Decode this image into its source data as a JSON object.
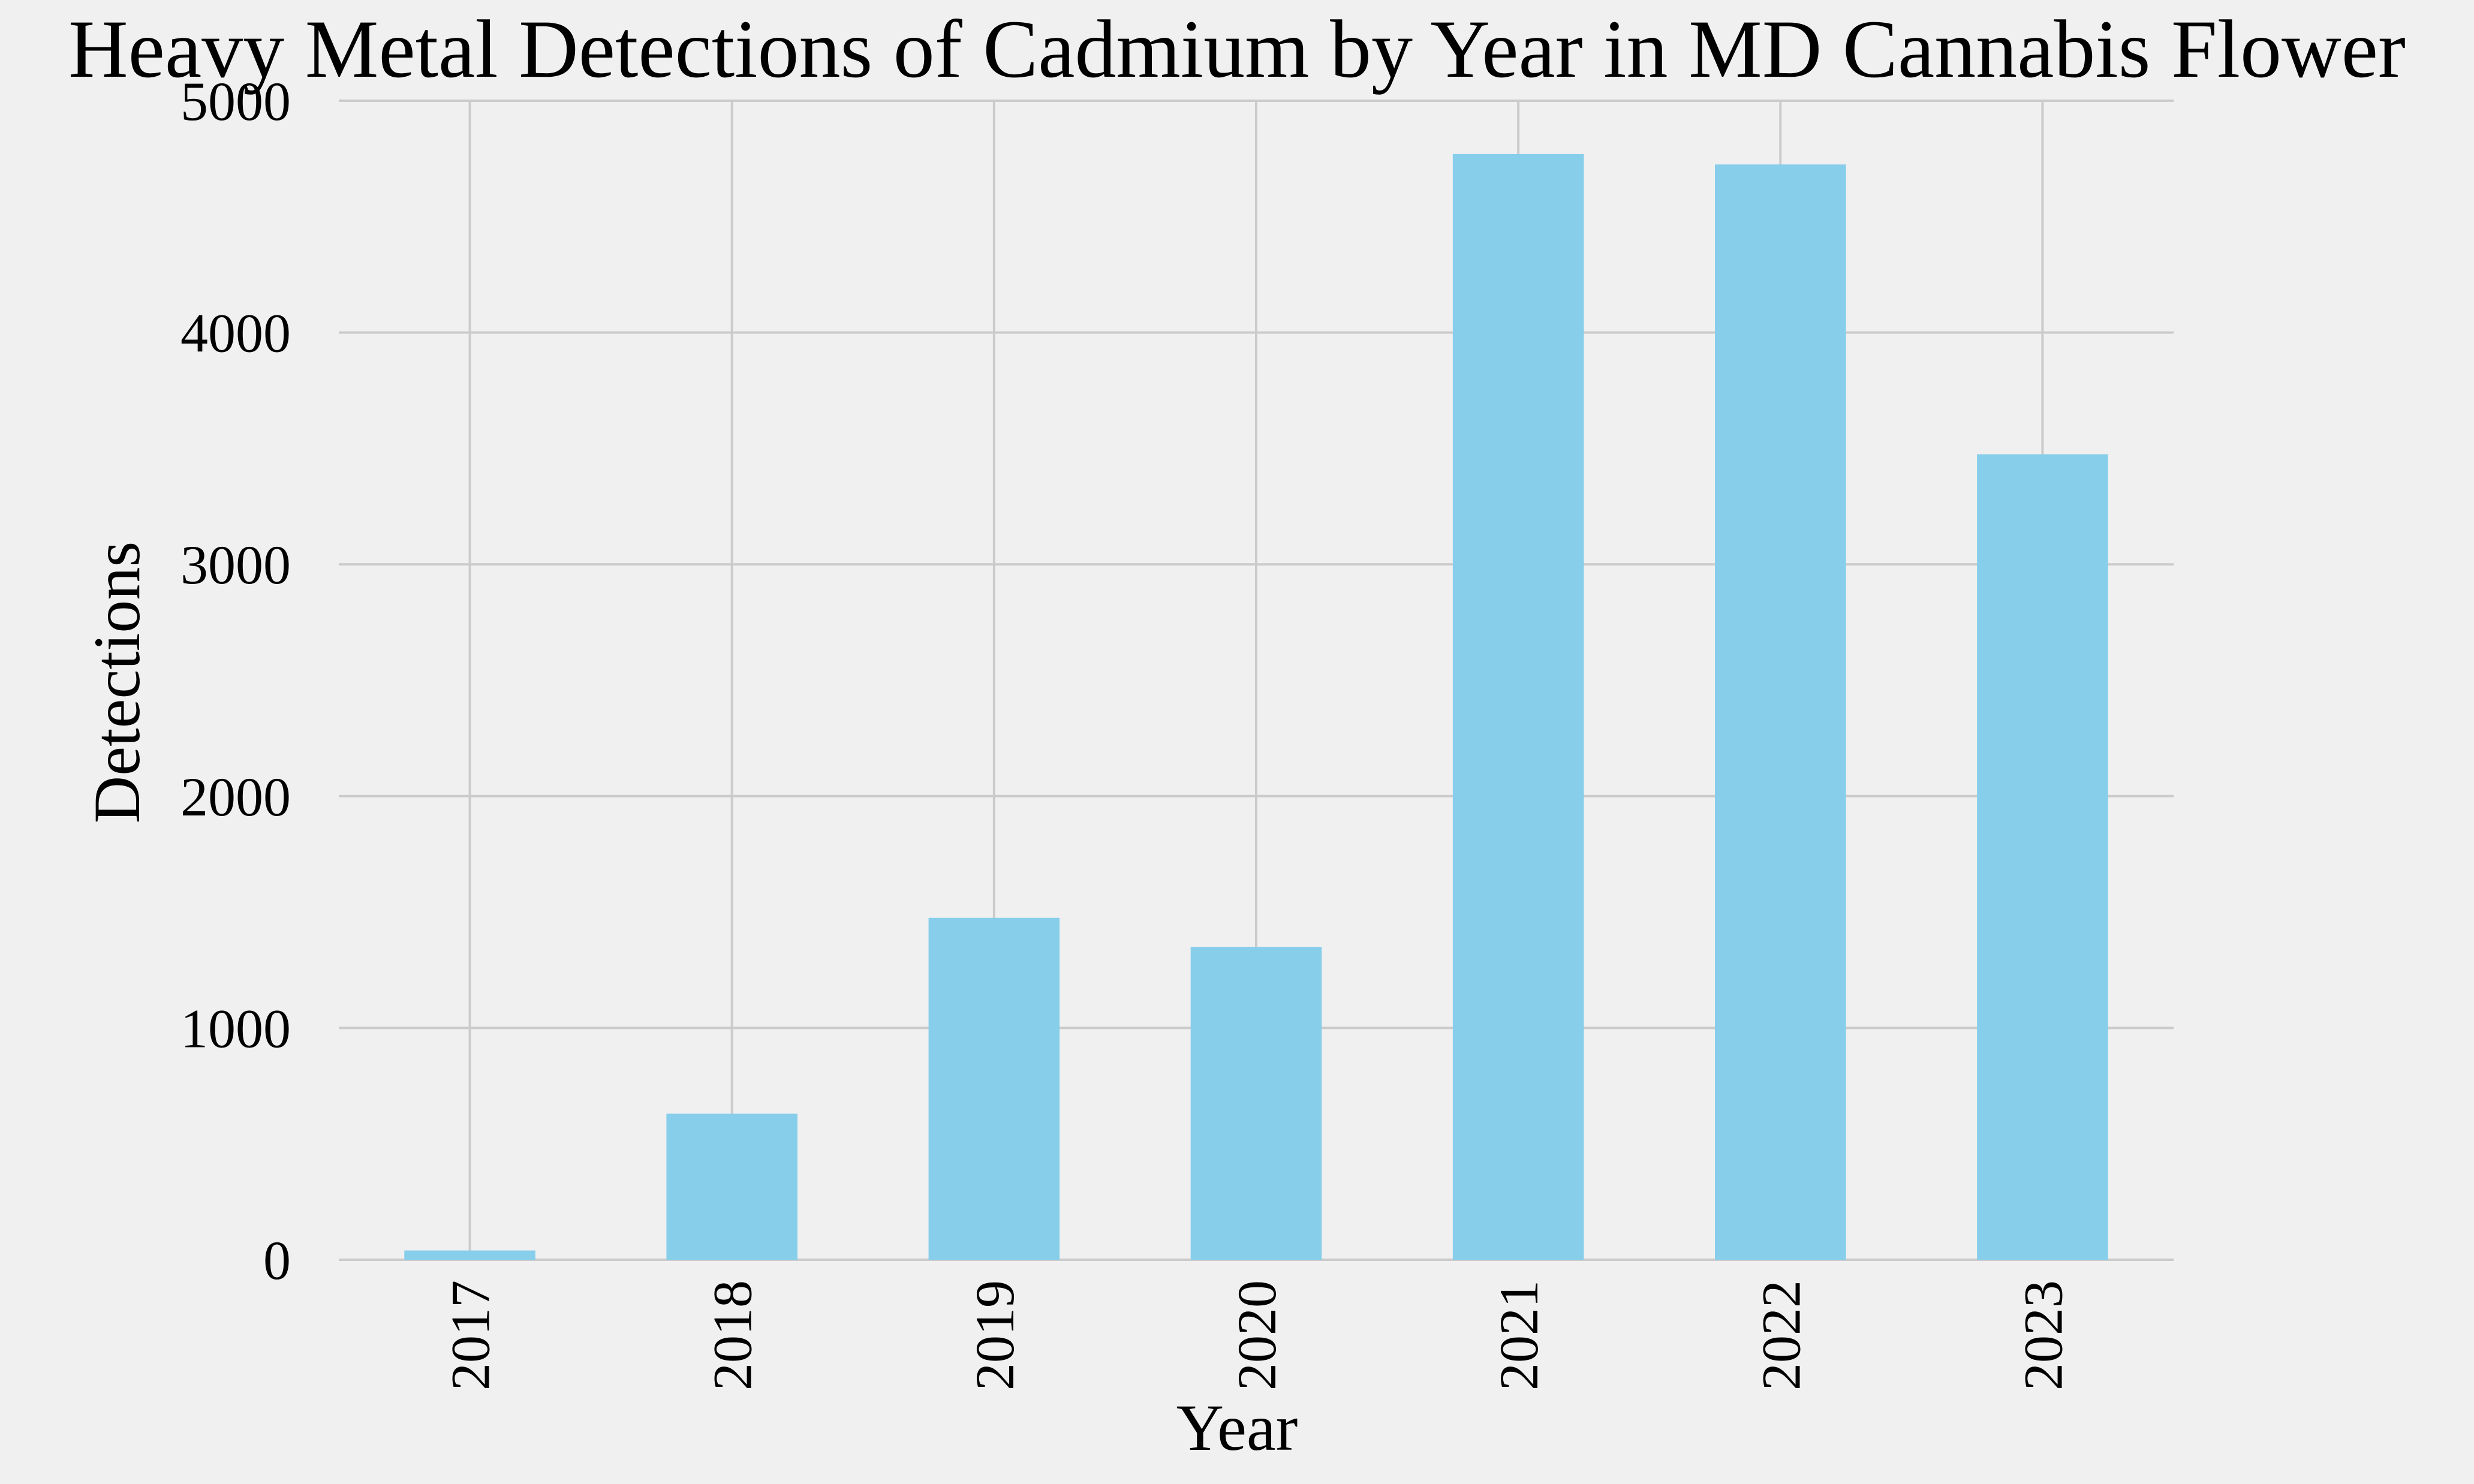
{
  "chart_data": {
    "type": "bar",
    "title": "Heavy Metal Detections of Cadmium by Year in MD Cannabis Flower",
    "xlabel": "Year",
    "ylabel": "Detections",
    "categories": [
      "2017",
      "2018",
      "2019",
      "2020",
      "2021",
      "2022",
      "2023"
    ],
    "values": [
      40,
      630,
      1475,
      1350,
      4770,
      4725,
      3475
    ],
    "ylim": [
      0,
      5000
    ],
    "yticks": [
      0,
      1000,
      2000,
      3000,
      4000,
      5000
    ],
    "grid": true,
    "bar_color": "#87ceeb",
    "background_color": "#f0f0f0",
    "grid_color": "#cbcbcb",
    "xtick_rotation": "vertical"
  }
}
